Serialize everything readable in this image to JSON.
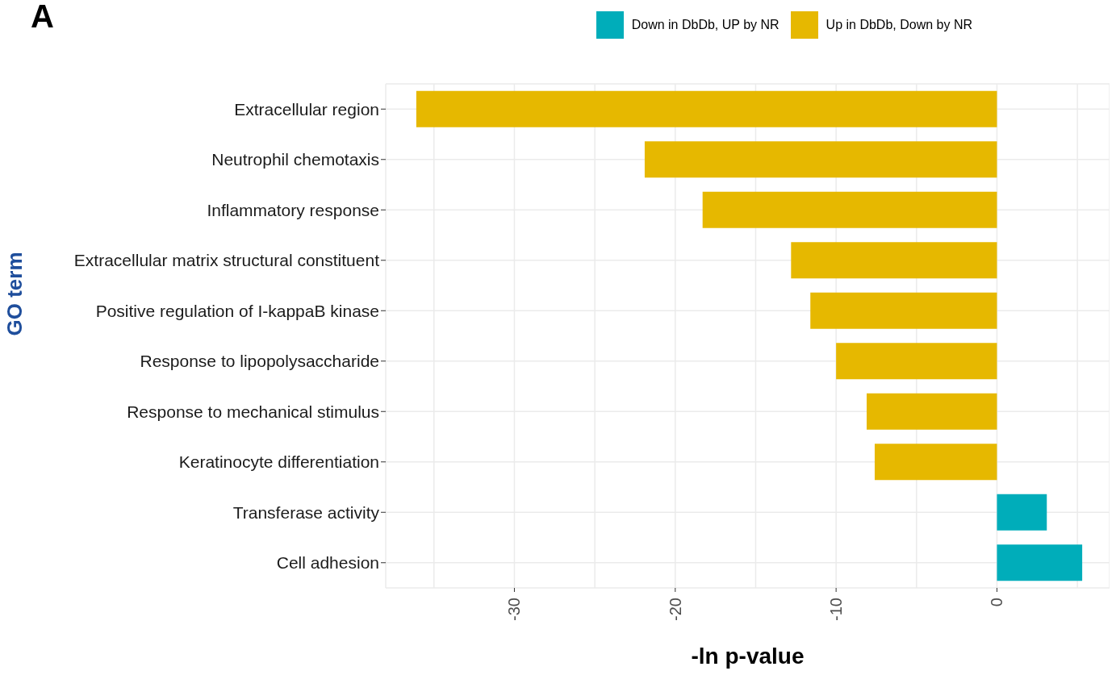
{
  "chart_data": {
    "type": "bar",
    "orientation": "horizontal",
    "title": "A",
    "xlabel": "-ln p-value",
    "ylabel": "GO term",
    "categories": [
      "Extracellular region",
      "Neutrophil chemotaxis",
      "Inflammatory response",
      "Extracellular matrix structural constituent",
      "Positive regulation of I-kappaB kinase",
      "Response to lipopolysaccharide",
      "Response to mechanical stimulus",
      "Keratinocyte differentiation",
      "Transferase activity",
      "Cell adhesion"
    ],
    "series": [
      {
        "name": "Down in DbDb, UP by NR",
        "color": "#00adba",
        "values": [
          null,
          null,
          null,
          null,
          null,
          null,
          null,
          null,
          3.1,
          5.3
        ]
      },
      {
        "name": "Up in DbDb, Down by NR",
        "color": "#e6b800",
        "values": [
          -36.1,
          -21.9,
          -18.3,
          -12.8,
          -11.6,
          -10.0,
          -8.1,
          -7.6,
          null,
          null
        ]
      }
    ],
    "xlim": [
      -38,
      7
    ],
    "xticks": [
      {
        "value": -35,
        "label": null
      },
      -30,
      {
        "value": -25,
        "label": null
      },
      -20,
      {
        "value": -15,
        "label": null
      },
      -10,
      {
        "value": -5,
        "label": null
      },
      0,
      {
        "value": 5,
        "label": null
      }
    ],
    "grid": true,
    "legend": "top right"
  }
}
